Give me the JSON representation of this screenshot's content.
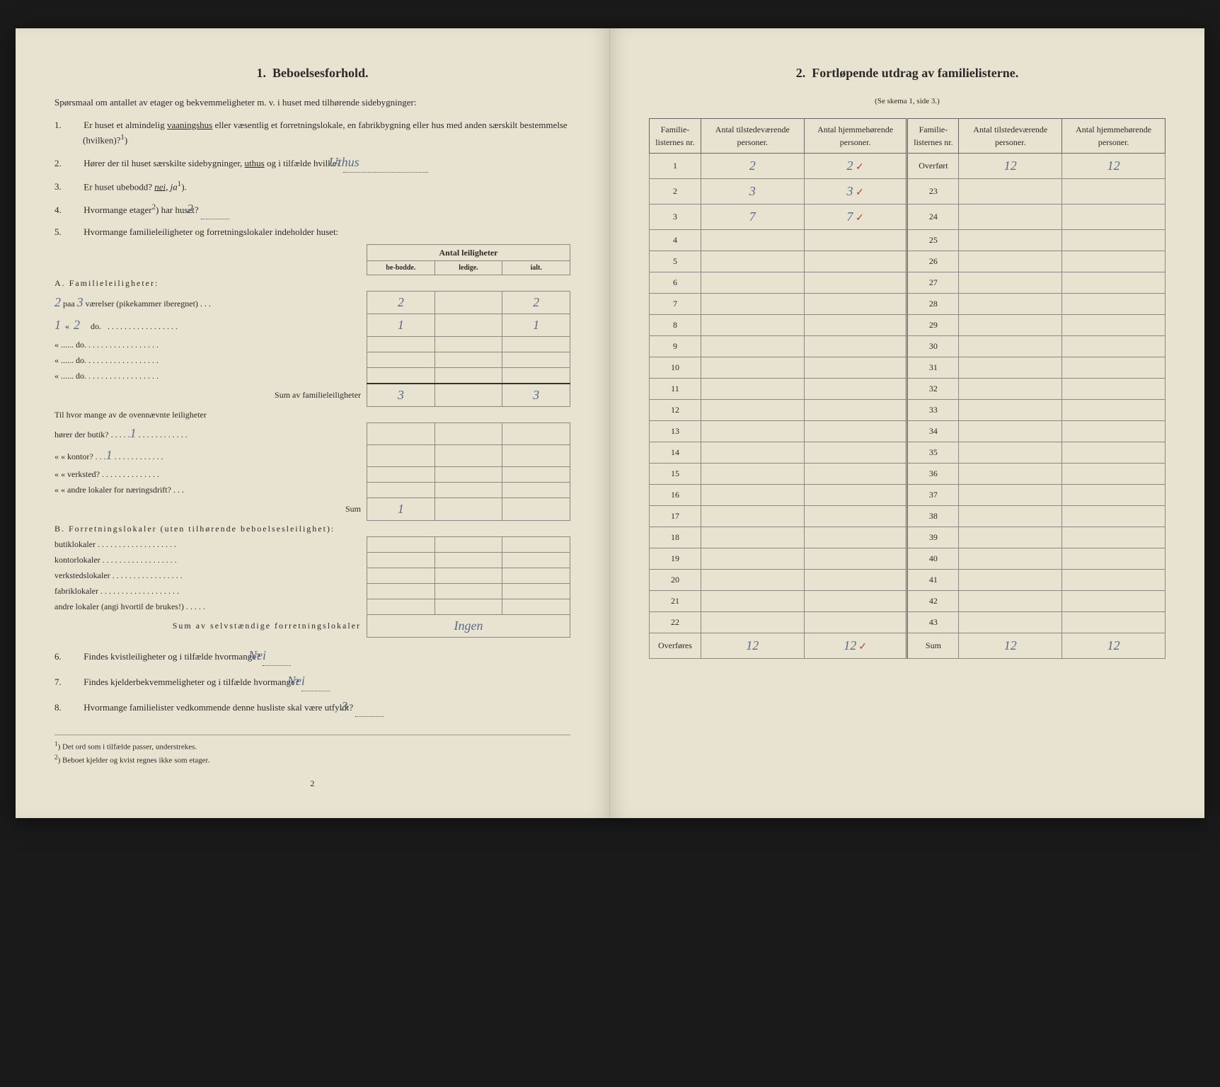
{
  "left": {
    "section_num": "1.",
    "section_title": "Beboelsesforhold.",
    "intro": "Spørsmaal om antallet av etager og bekvemmeligheter m. v. i huset med tilhørende sidebygninger:",
    "q1_num": "1.",
    "q1_text_a": "Er huset et almindelig ",
    "q1_underline": "vaaningshus",
    "q1_text_b": " eller væsentlig et forretningslokale, en fabrikbygning eller hus med anden særskilt bestemmelse (hvilken)?",
    "q1_sup": "1",
    "q2_num": "2.",
    "q2_text_a": "Hører der til huset særskilte sidebygninger, ",
    "q2_underline": "uthus",
    "q2_text_b": " og i tilfælde hvilke?",
    "q2_answer": "Uthus",
    "q3_num": "3.",
    "q3_text": "Er huset ubebodd?",
    "q3_nei": "nei,",
    "q3_ja": "ja",
    "q3_sup": "1",
    "q4_num": "4.",
    "q4_text_a": "Hvormange etager",
    "q4_sup": "2",
    "q4_text_b": ") har huset?",
    "q4_answer": "2",
    "q5_num": "5.",
    "q5_text": "Hvormange familieleiligheter og forretningslokaler indeholder huset:",
    "leil_header_top": "Antal leiligheter",
    "leil_h1": "be-bodde.",
    "leil_h2": "ledige.",
    "leil_h3": "ialt.",
    "A_label": "A. Familieleiligheter:",
    "A_rows": [
      {
        "pre": "2",
        "mid": "3",
        "text": "paa ...... værelser (pikekammer iberegnet) . . .",
        "c1": "2",
        "c2": "",
        "c3": "2"
      },
      {
        "pre": "1",
        "mid": "2",
        "text": "«   ......       do.        . . . . . . . . . . . . . . . . .",
        "c1": "1",
        "c2": "",
        "c3": "1"
      },
      {
        "pre": "",
        "mid": "",
        "text": "«   ......       do.        . . . . . . . . . . . . . . . . .",
        "c1": "",
        "c2": "",
        "c3": ""
      },
      {
        "pre": "",
        "mid": "",
        "text": "«   ......       do.        . . . . . . . . . . . . . . . . .",
        "c1": "",
        "c2": "",
        "c3": ""
      },
      {
        "pre": "",
        "mid": "",
        "text": "«   ......       do.        . . . . . . . . . . . . . . . . .",
        "c1": "",
        "c2": "",
        "c3": ""
      }
    ],
    "A_sum_label": "Sum av familieleiligheter",
    "A_sum_c1": "3",
    "A_sum_c3": "3",
    "A_sub_label": "Til hvor mange av de ovennævnte leiligheter",
    "A_sub_rows": [
      {
        "text": "hører der butik? . . . . .",
        "ans": "1"
      },
      {
        "text": "«      «   kontor? . . .",
        "ans": "1"
      },
      {
        "text": "«      «   verksted? . . . . . . . . . . . . . .",
        "ans": ""
      },
      {
        "text": "«      «   andre lokaler for næringsdrift? . . .",
        "ans": ""
      }
    ],
    "A_sub_sum_label": "Sum",
    "A_sub_sum": "1",
    "B_label": "B. Forretningslokaler (uten tilhørende beboelsesleilighet):",
    "B_rows": [
      "butiklokaler . . . . . . . . . . . . . . . . . . .",
      "kontorlokaler . . . . . . . . . . . . . . . . . .",
      "verkstedslokaler . . . . . . . . . . . . . . . . .",
      "fabriklokaler . . . . . . . . . . . . . . . . . . .",
      "andre lokaler (angi hvortil de brukes!) . . . . ."
    ],
    "B_sum_label": "Sum av selvstændige forretningslokaler",
    "B_sum_answer": "Ingen",
    "q6_num": "6.",
    "q6_text": "Findes kvistleiligheter og i tilfælde hvormange?",
    "q6_answer": "Nei",
    "q7_num": "7.",
    "q7_text": "Findes kjelderbekvemmeligheter og i tilfælde hvormange?",
    "q7_answer": "Nei",
    "q8_num": "8.",
    "q8_text": "Hvormange familielister vedkommende denne husliste skal være utfyldt?",
    "q8_answer": "3",
    "fn1_num": "1",
    "fn1_text": ") Det ord som i tilfælde passer, understrekes.",
    "fn2_num": "2",
    "fn2_text": ") Beboet kjelder og kvist regnes ikke som etager.",
    "pagenum": "2"
  },
  "right": {
    "section_num": "2.",
    "section_title": "Fortløpende utdrag av familielisterne.",
    "subhead": "(Se skema 1, side 3.)",
    "th1": "Familie-listernes nr.",
    "th2": "Antal tilstedeværende personer.",
    "th3": "Antal hjemmehørende personer.",
    "th4": "Familie-listernes nr.",
    "th5": "Antal tilstedeværende personer.",
    "th6": "Antal hjemmehørende personer.",
    "overfort_label": "Overført",
    "overfort_c5": "12",
    "overfort_c6": "12",
    "rows_left": [
      {
        "n": "1",
        "c2": "2",
        "c3": "2",
        "tick": "✓"
      },
      {
        "n": "2",
        "c2": "3",
        "c3": "3",
        "tick": "✓"
      },
      {
        "n": "3",
        "c2": "7",
        "c3": "7",
        "tick": "✓"
      },
      {
        "n": "4",
        "c2": "",
        "c3": "",
        "tick": ""
      },
      {
        "n": "5",
        "c2": "",
        "c3": "",
        "tick": ""
      },
      {
        "n": "6",
        "c2": "",
        "c3": "",
        "tick": ""
      },
      {
        "n": "7",
        "c2": "",
        "c3": "",
        "tick": ""
      },
      {
        "n": "8",
        "c2": "",
        "c3": "",
        "tick": ""
      },
      {
        "n": "9",
        "c2": "",
        "c3": "",
        "tick": ""
      },
      {
        "n": "10",
        "c2": "",
        "c3": "",
        "tick": ""
      },
      {
        "n": "11",
        "c2": "",
        "c3": "",
        "tick": ""
      },
      {
        "n": "12",
        "c2": "",
        "c3": "",
        "tick": ""
      },
      {
        "n": "13",
        "c2": "",
        "c3": "",
        "tick": ""
      },
      {
        "n": "14",
        "c2": "",
        "c3": "",
        "tick": ""
      },
      {
        "n": "15",
        "c2": "",
        "c3": "",
        "tick": ""
      },
      {
        "n": "16",
        "c2": "",
        "c3": "",
        "tick": ""
      },
      {
        "n": "17",
        "c2": "",
        "c3": "",
        "tick": ""
      },
      {
        "n": "18",
        "c2": "",
        "c3": "",
        "tick": ""
      },
      {
        "n": "19",
        "c2": "",
        "c3": "",
        "tick": ""
      },
      {
        "n": "20",
        "c2": "",
        "c3": "",
        "tick": ""
      },
      {
        "n": "21",
        "c2": "",
        "c3": "",
        "tick": ""
      },
      {
        "n": "22",
        "c2": "",
        "c3": "",
        "tick": ""
      }
    ],
    "rows_right_nums": [
      "23",
      "24",
      "25",
      "26",
      "27",
      "28",
      "29",
      "30",
      "31",
      "32",
      "33",
      "34",
      "35",
      "36",
      "37",
      "38",
      "39",
      "40",
      "41",
      "42",
      "43"
    ],
    "overfores_label": "Overføres",
    "overfores_c2": "12",
    "overfores_c3": "12",
    "sum_label": "Sum",
    "sum_c5": "12",
    "sum_c6": "12"
  }
}
